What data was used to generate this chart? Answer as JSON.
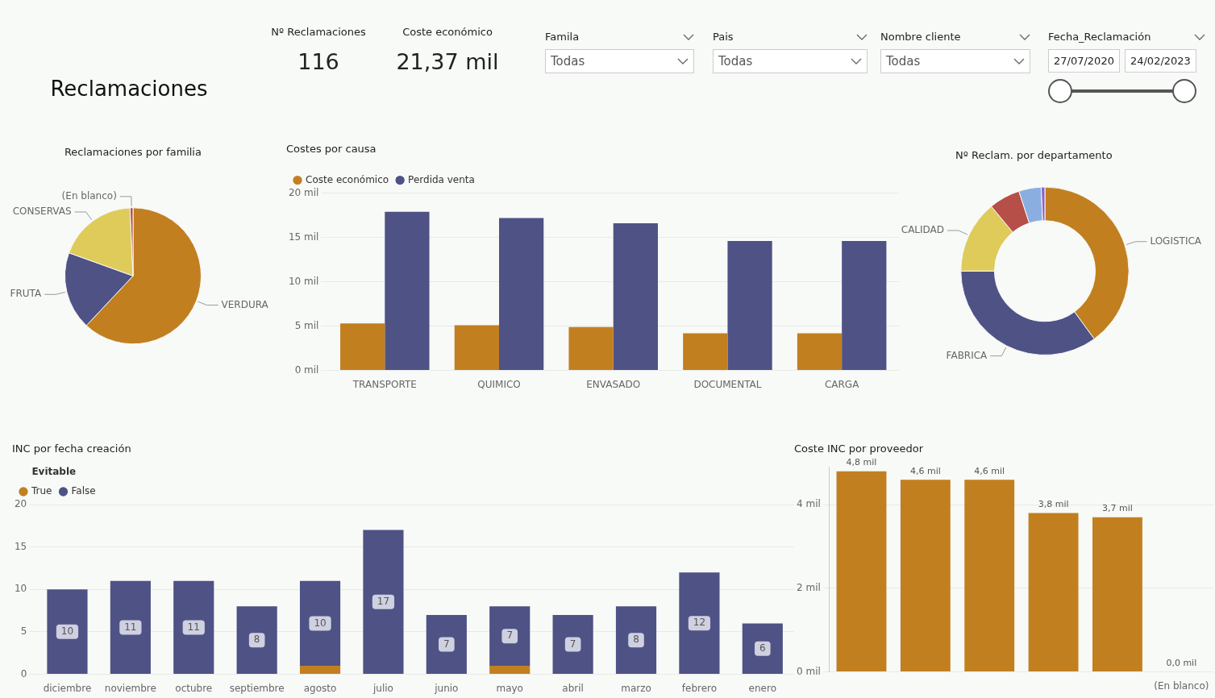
{
  "chart_data": [
    {
      "type": "other",
      "title": "Reclamaciones"
    },
    {
      "type": "other",
      "title": "Nº Reclamaciones",
      "annotations": [
        "116"
      ]
    },
    {
      "type": "other",
      "title": "Coste económico",
      "annotations": [
        "21,37 mil"
      ]
    },
    {
      "type": "other",
      "title": "Famila",
      "annotations": [
        "Todas"
      ]
    },
    {
      "type": "other",
      "title": "Pais",
      "annotations": [
        "Todas"
      ]
    },
    {
      "type": "other",
      "title": "Nombre cliente",
      "annotations": [
        "Todas"
      ]
    },
    {
      "type": "other",
      "title": "Fecha_Reclamación",
      "annotations": [
        "27/07/2020",
        "24/02/2023"
      ]
    },
    {
      "type": "pie",
      "title": "Reclamaciones por familia",
      "categories": [
        "VERDURA",
        "FRUTA",
        "CONSERVAS",
        "(En blanco)"
      ],
      "values": [
        62,
        18.5,
        18.8,
        0.7
      ],
      "colors": [
        "#c27f20",
        "#4f5285",
        "#dfcb5a",
        "#b54f48"
      ]
    },
    {
      "type": "bar",
      "title": "Costes por causa",
      "categories": [
        "TRANSPORTE",
        "QUIMICO",
        "ENVASADO",
        "DOCUMENTAL",
        "CARGA"
      ],
      "series": [
        {
          "name": "Coste económico",
          "color": "#c27f20",
          "values": [
            5.3,
            5.1,
            4.9,
            4.2,
            4.2
          ]
        },
        {
          "name": "Perdida venta",
          "color": "#4f5285",
          "values": [
            17.9,
            17.2,
            16.6,
            14.6,
            14.6
          ]
        }
      ],
      "ylim": [
        0,
        20
      ],
      "yticks": [
        {
          "value": 0,
          "label": "0 mil"
        },
        {
          "value": 5,
          "label": "5 mil"
        },
        {
          "value": 10,
          "label": "10 mil"
        },
        {
          "value": 15,
          "label": "15 mil"
        },
        {
          "value": 20,
          "label": "20 mil"
        }
      ],
      "grid": "y",
      "legend": "top left"
    },
    {
      "type": "donut",
      "title": "Nº Reclam. por departamento",
      "categories": [
        "LOGISTICA",
        "FABRICA",
        "CALIDAD",
        null,
        null,
        null
      ],
      "values": [
        40,
        35,
        14,
        6,
        4.3,
        0.7
      ],
      "colors": [
        "#c27f20",
        "#4f5285",
        "#dfcb5a",
        "#b54f48",
        "#8aaee0",
        "#8f61c9"
      ]
    },
    {
      "type": "bar",
      "title": "INC por fecha creación",
      "legend_title": "Evitable",
      "stacked": true,
      "categories": [
        "diciembre",
        "noviembre",
        "octubre",
        "septiembre",
        "agosto",
        "julio",
        "junio",
        "mayo",
        "abril",
        "marzo",
        "febrero",
        "enero"
      ],
      "series": [
        {
          "name": "True",
          "color": "#c27f20",
          "values": [
            0,
            0,
            0,
            0,
            1,
            0,
            0,
            1,
            0,
            0,
            0,
            0
          ]
        },
        {
          "name": "False",
          "color": "#4f5285",
          "values": [
            10,
            11,
            11,
            8,
            10,
            17,
            7,
            7,
            7,
            8,
            12,
            6
          ],
          "value_labels": [
            "10",
            "11",
            "11",
            "8",
            "10",
            "17",
            "7",
            "7",
            "7",
            "8",
            "12",
            "6"
          ]
        }
      ],
      "ylim": [
        0,
        20
      ],
      "yticks": [
        0,
        5,
        10,
        15,
        20
      ],
      "grid": "y",
      "legend": "top left"
    },
    {
      "type": "bar",
      "title": "Coste INC por proveedor",
      "categories": [
        null,
        null,
        null,
        null,
        null,
        "(En blanco)"
      ],
      "values": [
        4.8,
        4.6,
        4.6,
        3.8,
        3.7,
        0.0
      ],
      "color": "#c27f20",
      "value_labels": [
        "4,8 mil",
        "4,6 mil",
        "4,6 mil",
        "3,8 mil",
        "3,7 mil",
        "0,0 mil"
      ],
      "ylim": [
        0,
        4.9
      ],
      "yticks": [
        {
          "value": 0,
          "label": "0 mil"
        },
        {
          "value": 2,
          "label": "2 mil"
        },
        {
          "value": 4,
          "label": "4 mil"
        }
      ],
      "grid": "y"
    }
  ]
}
